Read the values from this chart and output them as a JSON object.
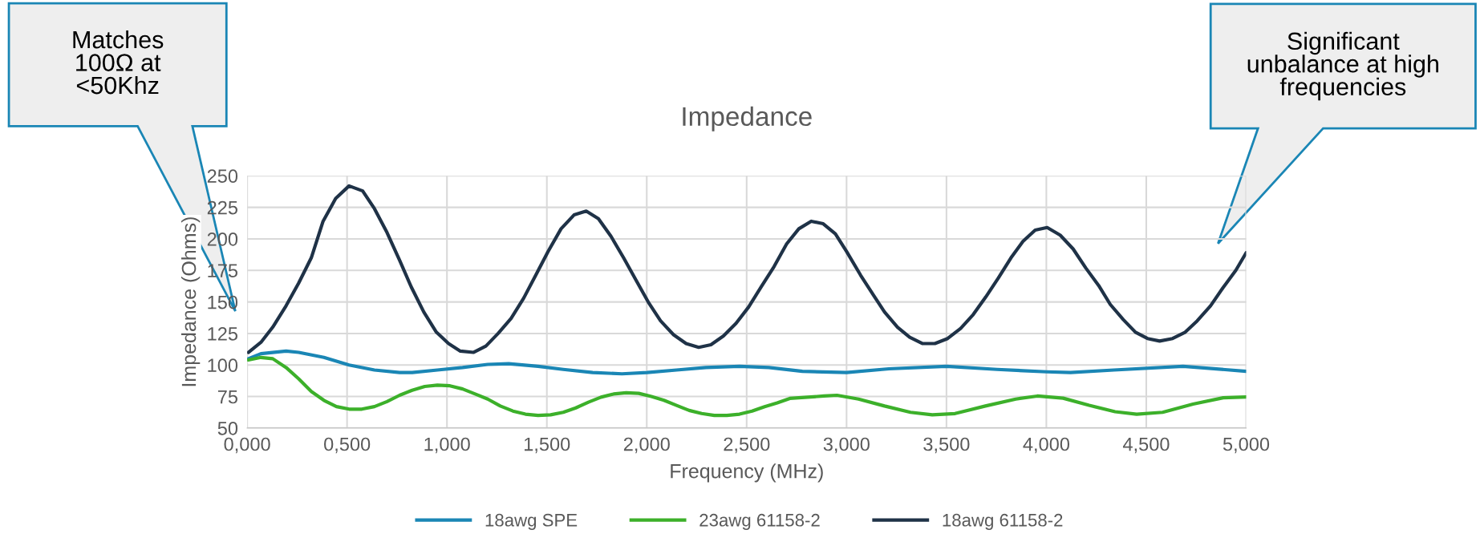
{
  "chart_data": {
    "type": "line",
    "title": "Impedance",
    "xlabel": "Frequency (MHz)",
    "ylabel": "Impedance (Ohms)",
    "annotations": [
      "Matches\n100Ω at\n<50Khz",
      "Significant\nunbalance at high\nfrequencies"
    ],
    "xlim": [
      0,
      5
    ],
    "ylim": [
      50,
      250
    ],
    "xticks": [
      {
        "value": 0,
        "label": "0,000"
      },
      {
        "value": 0.5,
        "label": "0,500"
      },
      {
        "value": 1,
        "label": "1,000"
      },
      {
        "value": 1.5,
        "label": "1,500"
      },
      {
        "value": 2,
        "label": "2,000"
      },
      {
        "value": 2.5,
        "label": "2,500"
      },
      {
        "value": 3,
        "label": "3,000"
      },
      {
        "value": 3.5,
        "label": "3,500"
      },
      {
        "value": 4,
        "label": "4,000"
      },
      {
        "value": 4.5,
        "label": "4,500"
      },
      {
        "value": 5,
        "label": "5,000"
      }
    ],
    "yticks": [
      50,
      75,
      100,
      125,
      150,
      175,
      200,
      225,
      250
    ],
    "grid": true,
    "legend": "bottom",
    "marker": "none",
    "line_style": "solid",
    "series": [
      {
        "name": "18awg SPE",
        "color": "#1a86b5",
        "x": [
          0.006,
          0.069,
          0.195,
          0.258,
          0.384,
          0.51,
          0.637,
          0.763,
          0.826,
          0.952,
          1.078,
          1.204,
          1.309,
          1.456,
          1.582,
          1.729,
          1.876,
          2.002,
          2.149,
          2.296,
          2.464,
          2.611,
          2.779,
          3.0,
          3.212,
          3.5,
          3.753,
          4.002,
          4.121,
          4.338,
          4.684,
          5.0
        ],
        "values": [
          105,
          109,
          111,
          110,
          106,
          100,
          96,
          94,
          94,
          96,
          98,
          100.5,
          101,
          99,
          96.5,
          94,
          93,
          94,
          96,
          98,
          99,
          98,
          95,
          94,
          97,
          99,
          96.5,
          94.6,
          94,
          96,
          99,
          95
        ]
      },
      {
        "name": "23awg 61158-2",
        "color": "#3cb02a",
        "x": [
          0.006,
          0.069,
          0.128,
          0.195,
          0.258,
          0.321,
          0.384,
          0.447,
          0.51,
          0.574,
          0.637,
          0.7,
          0.763,
          0.826,
          0.889,
          0.952,
          1.015,
          1.078,
          1.141,
          1.204,
          1.267,
          1.33,
          1.393,
          1.456,
          1.519,
          1.582,
          1.645,
          1.708,
          1.771,
          1.834,
          1.897,
          1.96,
          2.023,
          2.086,
          2.149,
          2.212,
          2.275,
          2.338,
          2.401,
          2.464,
          2.527,
          2.59,
          2.653,
          2.716,
          2.887,
          2.952,
          3.06,
          3.19,
          3.32,
          3.429,
          3.543,
          3.695,
          3.847,
          3.955,
          4.084,
          4.214,
          4.344,
          4.452,
          4.582,
          4.734,
          4.885,
          5.0
        ],
        "values": [
          104,
          106,
          105,
          98,
          89,
          79,
          72,
          67,
          65,
          65,
          67,
          71,
          76,
          80,
          83,
          84,
          83.5,
          81,
          77,
          73,
          67.5,
          63.5,
          61,
          60,
          60.5,
          62.5,
          66,
          70.5,
          74.5,
          77,
          78,
          77.5,
          75,
          72,
          68,
          64,
          61.5,
          60,
          60,
          61,
          63.5,
          67,
          70,
          73.5,
          75.4,
          76,
          73,
          67.5,
          62.5,
          60.5,
          61.5,
          67.5,
          73,
          75.4,
          73.7,
          68,
          63,
          61,
          62.5,
          69,
          74,
          74.7
        ]
      },
      {
        "name": "18awg 61158-2",
        "color": "#1f3247",
        "x": [
          0.006,
          0.069,
          0.128,
          0.195,
          0.258,
          0.321,
          0.38,
          0.443,
          0.51,
          0.578,
          0.637,
          0.7,
          0.763,
          0.821,
          0.884,
          0.947,
          1.008,
          1.067,
          1.132,
          1.195,
          1.256,
          1.321,
          1.384,
          1.447,
          1.506,
          1.571,
          1.636,
          1.697,
          1.758,
          1.821,
          1.884,
          1.947,
          2.011,
          2.069,
          2.134,
          2.197,
          2.26,
          2.321,
          2.384,
          2.447,
          2.51,
          2.573,
          2.637,
          2.7,
          2.761,
          2.823,
          2.883,
          2.944,
          3.0,
          3.071,
          3.136,
          3.19,
          3.255,
          3.316,
          3.381,
          3.442,
          3.506,
          3.571,
          3.634,
          3.697,
          3.76,
          3.823,
          3.883,
          3.944,
          4.004,
          4.069,
          4.134,
          4.197,
          4.262,
          4.32,
          4.385,
          4.446,
          4.506,
          4.567,
          4.632,
          4.695,
          4.755,
          4.822,
          4.883,
          4.948,
          5.0
        ],
        "values": [
          110,
          118,
          130,
          147,
          165,
          185,
          214,
          232,
          242,
          238,
          224,
          205,
          183,
          162,
          142,
          126,
          117,
          111,
          110,
          115,
          125,
          137,
          153,
          172,
          190,
          208,
          219,
          222,
          216,
          202,
          185,
          167,
          149,
          135,
          124,
          117,
          114,
          116,
          123,
          133,
          146,
          162,
          178,
          196,
          208,
          214,
          212,
          204,
          190,
          171,
          155,
          142,
          130,
          122,
          117,
          117,
          121,
          129,
          140,
          154,
          169,
          185,
          198,
          207,
          209,
          203,
          192,
          177,
          163,
          148,
          136,
          126,
          121,
          119,
          121,
          126,
          135,
          147,
          161,
          175,
          189
        ]
      }
    ]
  }
}
